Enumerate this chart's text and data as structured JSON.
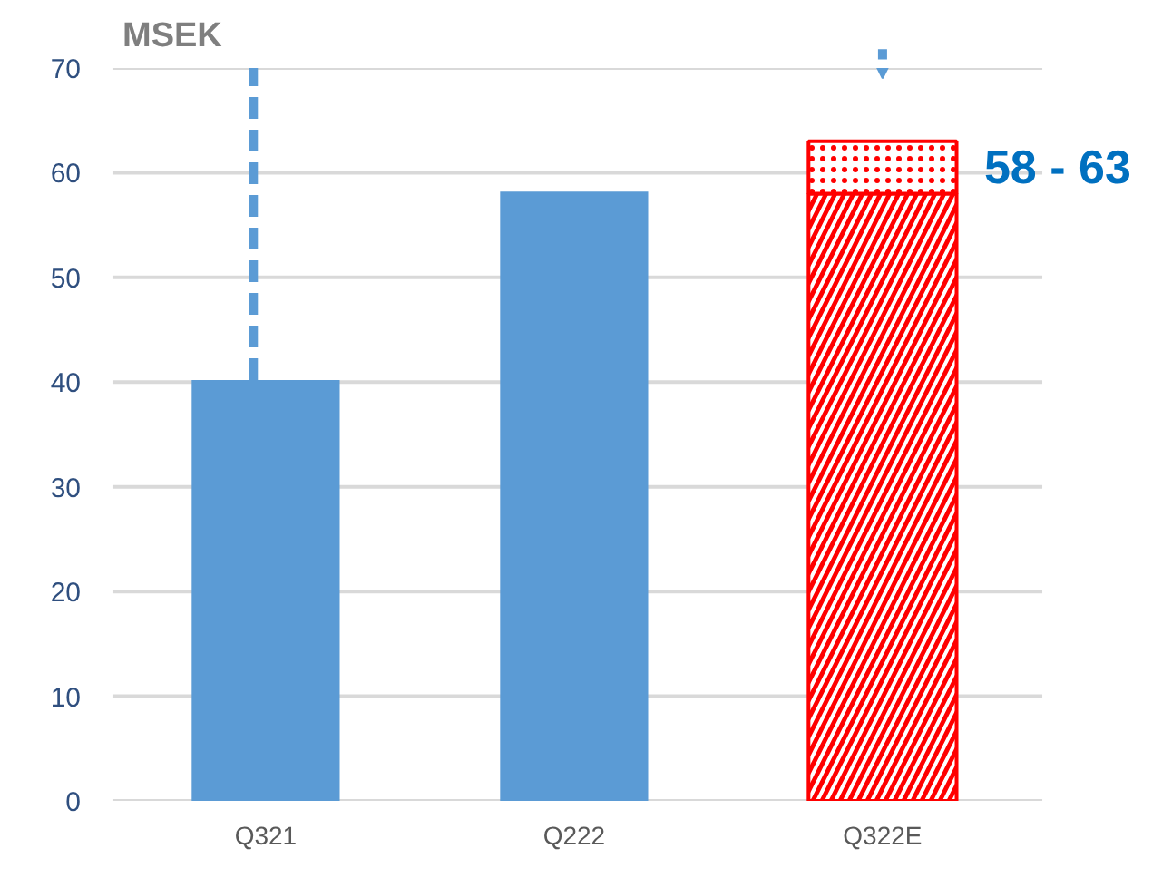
{
  "chart_data": {
    "type": "bar",
    "stacked": true,
    "ylabel": "MSEK",
    "categories": [
      "Q321",
      "Q222",
      "Q322E"
    ],
    "series": [
      {
        "color": "#5b9bd5",
        "colors": [
          "#5b9bd5",
          "#5b9bd5",
          "#ff0000"
        ],
        "values": [
          40.2,
          58.2,
          58
        ]
      },
      {
        "color": "#ff0000",
        "values": [
          null,
          null,
          5
        ]
      }
    ],
    "ylim": [
      0,
      70
    ],
    "yticks": [
      0,
      10,
      20,
      30,
      40,
      50,
      60,
      70
    ],
    "grid": "y",
    "annotations": [
      "58 - 63"
    ]
  }
}
